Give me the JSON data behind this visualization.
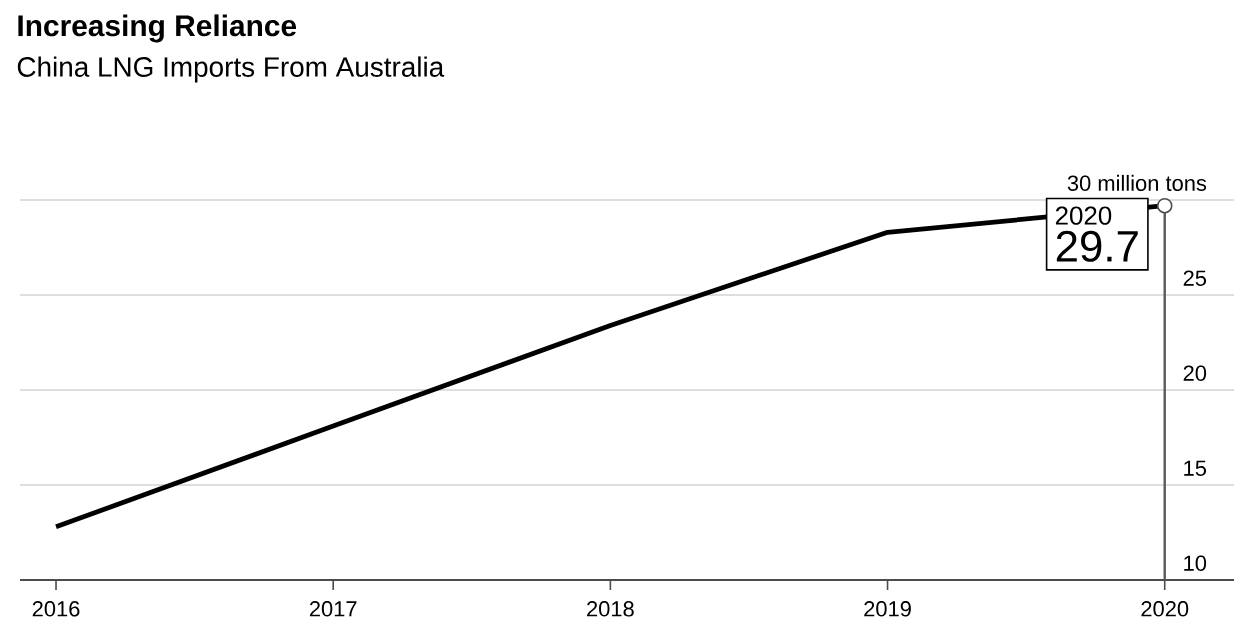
{
  "chart_data": {
    "type": "line",
    "title": "Increasing Reliance",
    "subtitle": "China LNG Imports From Australia",
    "x": [
      2016,
      2017,
      2018,
      2019,
      2020
    ],
    "series": [
      {
        "color": "#000000",
        "values": [
          12.8,
          18.1,
          23.4,
          28.3,
          29.7
        ]
      }
    ],
    "xlim": [
      2015.87,
      2020.25
    ],
    "xticks": [
      2016,
      2017,
      2018,
      2019,
      2020
    ],
    "ylim": [
      10,
      30
    ],
    "yticks": [
      10,
      15,
      20,
      25,
      {
        "value": 30,
        "label": "30 million tons"
      }
    ],
    "grid": "y",
    "annotations": [
      {
        "text": "2020",
        "x": 2020,
        "y": 29.7
      },
      {
        "text": "29.7",
        "x": 2020,
        "y": 29.7
      }
    ]
  }
}
